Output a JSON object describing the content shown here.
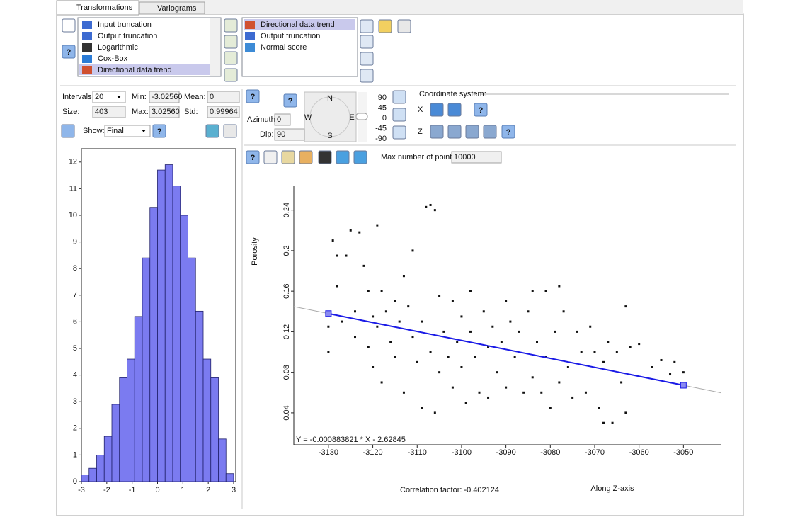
{
  "ui": {
    "tabs": [
      "Transformations",
      "Variograms"
    ],
    "available_list": [
      "Input truncation",
      "Output truncation",
      "Logarithmic",
      "Cox-Box",
      "Directional data trend"
    ],
    "selected_list": [
      "Directional data trend",
      "Output truncation",
      "Normal score"
    ],
    "help": "?",
    "stats": {
      "intervals_label": "Intervals:",
      "intervals": "20",
      "min_label": "Min:",
      "min": "-3.02560",
      "mean_label": "Mean:",
      "mean": "0",
      "size_label": "Size:",
      "size": "403",
      "max_label": "Max:",
      "max": "3.02560",
      "std_label": "Std:",
      "std": "0.99964"
    },
    "show_label": "Show:",
    "show": "Final",
    "direction": {
      "azimuth_label": "Azimuth:",
      "azimuth": "0",
      "dip_label": "Dip:",
      "dip": "90",
      "compass": [
        "N",
        "S",
        "W",
        "E"
      ],
      "dip_scale": [
        "90",
        "45",
        "0",
        "-45",
        "-90"
      ]
    },
    "coordinate_label": "Coordinate system:",
    "axes": [
      "X",
      "Z"
    ],
    "max_points_label": "Max number of points:",
    "max_points": "10000",
    "correlation": "Correlation factor: -0.402124"
  },
  "chart_data": [
    {
      "type": "histogram",
      "bins": [
        -3,
        -2.7,
        -2.4,
        -2.1,
        -1.8,
        -1.5,
        -1.2,
        -0.9,
        -0.6,
        -0.3,
        0,
        0.3,
        0.6,
        0.9,
        1.2,
        1.5,
        1.8,
        2.1,
        2.4,
        2.7,
        3
      ],
      "values": [
        0.25,
        0.5,
        1.0,
        1.7,
        2.9,
        3.9,
        4.6,
        6.2,
        8.4,
        10.3,
        11.7,
        11.9,
        11.1,
        10.0,
        8.4,
        6.4,
        4.6,
        3.9,
        1.6,
        0.3
      ],
      "color": "#7b7bf0",
      "xlim": [
        -3,
        3
      ],
      "xticks": [
        -3,
        -2,
        -1,
        0,
        1,
        2,
        3
      ],
      "ylim": [
        0,
        12.5
      ],
      "yticks": [
        0,
        1,
        2,
        3,
        4,
        5,
        6,
        7,
        8,
        9,
        10,
        11,
        12
      ]
    },
    {
      "type": "scatter",
      "x_label": "Along Z-axis",
      "y_label": "Porosity",
      "color": "#111111",
      "x": [
        -3130,
        -3130,
        -3129,
        -3128,
        -3128,
        -3127,
        -3126,
        -3125,
        -3124,
        -3124,
        -3123,
        -3122,
        -3121,
        -3121,
        -3120,
        -3120,
        -3119,
        -3119,
        -3118,
        -3118,
        -3117,
        -3116,
        -3115,
        -3115,
        -3114,
        -3113,
        -3113,
        -3112,
        -3111,
        -3111,
        -3110,
        -3109,
        -3109,
        -3108,
        -3107,
        -3107,
        -3106,
        -3106,
        -3105,
        -3105,
        -3104,
        -3103,
        -3102,
        -3102,
        -3101,
        -3100,
        -3100,
        -3099,
        -3098,
        -3098,
        -3097,
        -3096,
        -3095,
        -3094,
        -3094,
        -3093,
        -3092,
        -3091,
        -3090,
        -3090,
        -3089,
        -3088,
        -3087,
        -3086,
        -3085,
        -3084,
        -3084,
        -3083,
        -3082,
        -3081,
        -3081,
        -3080,
        -3079,
        -3078,
        -3078,
        -3077,
        -3076,
        -3075,
        -3074,
        -3073,
        -3072,
        -3071,
        -3070,
        -3069,
        -3068,
        -3068,
        -3067,
        -3066,
        -3065,
        -3064,
        -3063,
        -3063,
        -3062,
        -3060,
        -3057,
        -3055,
        -3053,
        -3052,
        -3050
      ],
      "y": [
        0.1,
        0.125,
        0.21,
        0.195,
        0.165,
        0.13,
        0.195,
        0.22,
        0.14,
        0.115,
        0.218,
        0.185,
        0.16,
        0.105,
        0.135,
        0.085,
        0.225,
        0.125,
        0.16,
        0.07,
        0.14,
        0.11,
        0.15,
        0.095,
        0.13,
        0.175,
        0.06,
        0.145,
        0.115,
        0.2,
        0.09,
        0.13,
        0.045,
        0.243,
        0.245,
        0.1,
        0.24,
        0.04,
        0.155,
        0.08,
        0.12,
        0.095,
        0.15,
        0.065,
        0.11,
        0.135,
        0.085,
        0.05,
        0.16,
        0.12,
        0.095,
        0.06,
        0.14,
        0.105,
        0.055,
        0.125,
        0.08,
        0.11,
        0.15,
        0.065,
        0.13,
        0.095,
        0.12,
        0.06,
        0.14,
        0.16,
        0.075,
        0.11,
        0.06,
        0.16,
        0.095,
        0.045,
        0.12,
        0.165,
        0.07,
        0.14,
        0.085,
        0.055,
        0.12,
        0.1,
        0.06,
        0.125,
        0.1,
        0.045,
        0.03,
        0.09,
        0.11,
        0.03,
        0.1,
        0.07,
        0.145,
        0.04,
        0.105,
        0.108,
        0.085,
        0.092,
        0.078,
        0.09,
        0.08
      ],
      "xlim": [
        -3137.8,
        -3041.6
      ],
      "xticks": [
        -3130,
        -3120,
        -3110,
        -3100,
        -3090,
        -3080,
        -3070,
        -3060,
        -3050
      ],
      "ylim": [
        0.0085,
        0.2635
      ],
      "yticks": [
        0.04,
        0.08,
        0.12,
        0.16,
        0.2,
        0.24
      ],
      "trend": {
        "x": [
          -3130,
          -3050
        ],
        "y": [
          0.1379,
          0.0672
        ],
        "color": "#1a1ae6",
        "label": "Y = -0.000883821 * X - 2.62845"
      }
    }
  ]
}
